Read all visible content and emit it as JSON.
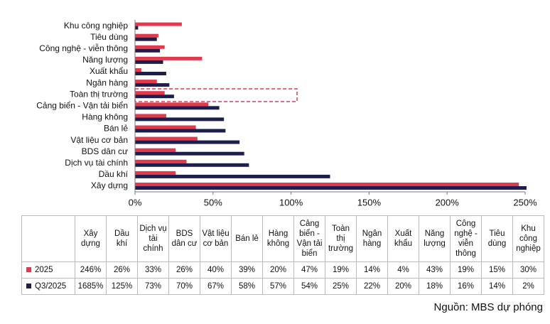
{
  "chart_data": {
    "type": "bar",
    "orientation": "horizontal",
    "categories": [
      "Xây dựng",
      "Dầu khí",
      "Dịch vụ tài chính",
      "BDS dân cư",
      "Vật liệu cơ bản",
      "Bán lẻ",
      "Hàng không",
      "Cảng biển - Vận tải biển",
      "Toàn thị trường",
      "Ngân hàng",
      "Xuất khẩu",
      "Năng lượng",
      "Công nghệ - viễn thông",
      "Tiêu dùng",
      "Khu công nghiệp"
    ],
    "series": [
      {
        "name": "2025",
        "color": "#e03a4e",
        "values": [
          246,
          26,
          33,
          26,
          40,
          39,
          20,
          47,
          19,
          14,
          4,
          43,
          19,
          15,
          30
        ],
        "value_labels": [
          "246%",
          "26%",
          "33%",
          "26%",
          "40%",
          "39%",
          "20%",
          "47%",
          "19%",
          "14%",
          "4%",
          "43%",
          "19%",
          "15%",
          "30%"
        ]
      },
      {
        "name": "Q3/2025",
        "color": "#1e1e4c",
        "values": [
          1685,
          125,
          73,
          70,
          67,
          58,
          57,
          54,
          25,
          22,
          20,
          18,
          16,
          14,
          2
        ],
        "value_labels": [
          "1685%",
          "125%",
          "73%",
          "70%",
          "67%",
          "58%",
          "57%",
          "54%",
          "25%",
          "22%",
          "20%",
          "18%",
          "16%",
          "14%",
          "2%"
        ]
      }
    ],
    "xlim": [
      0,
      250
    ],
    "xticks": [
      {
        "value": 0,
        "label": "0%"
      },
      {
        "value": 50,
        "label": "50%"
      },
      {
        "value": 100,
        "label": "100%"
      },
      {
        "value": 150,
        "label": "150%"
      },
      {
        "value": 200,
        "label": "200%"
      },
      {
        "value": 250,
        "label": "250%"
      }
    ],
    "grid": false,
    "source": "Nguồn: MBS dự phóng"
  }
}
